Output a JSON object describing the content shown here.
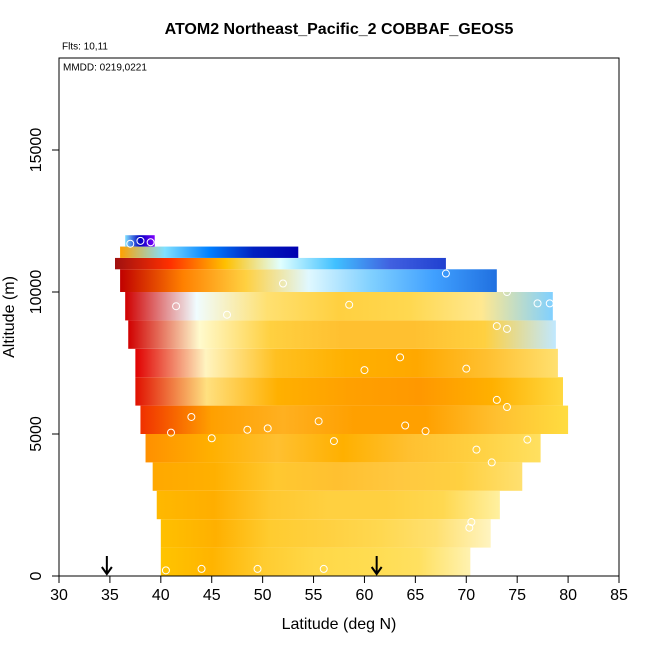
{
  "chart_data": {
    "type": "curtain",
    "title": "ATOM2 Northeast_Pacific_2 COBBAF_GEOS5",
    "note_top": "Flts: 10,11",
    "note_inner": "MMDD: 0219,0221",
    "xlabel": "Latitude (deg N)",
    "ylabel": "Altitude (m)",
    "xlim": [
      30,
      85
    ],
    "xticks": [
      30,
      35,
      40,
      45,
      50,
      55,
      60,
      65,
      70,
      75,
      80,
      85
    ],
    "ylim": [
      0,
      18240
    ],
    "yticks": [
      0,
      5000,
      10000,
      15000
    ],
    "rows": [
      {
        "alt": [
          0,
          1000
        ],
        "lat": [
          40,
          70.4
        ],
        "colors": [
          "#ffc400",
          "#ffb400",
          "#ffcc30",
          "#ffd848",
          "#ffdc50",
          "#ffe060",
          "#fff2b0"
        ]
      },
      {
        "alt": [
          1000,
          2000
        ],
        "lat": [
          40,
          72.4
        ],
        "colors": [
          "#ffc000",
          "#ffb000",
          "#ffcc30",
          "#ffd040",
          "#ffd850",
          "#ffe070",
          "#fff4c0"
        ]
      },
      {
        "alt": [
          2000,
          3000
        ],
        "lat": [
          39.6,
          73.3
        ],
        "colors": [
          "#ffb800",
          "#ffae00",
          "#ffc830",
          "#ffd040",
          "#ffd040",
          "#ffd850",
          "#fff0a0"
        ]
      },
      {
        "alt": [
          3000,
          4000
        ],
        "lat": [
          39.2,
          75.5
        ],
        "colors": [
          "#ffa800",
          "#ffb000",
          "#ffc830",
          "#ffc030",
          "#ffc840",
          "#ffd040",
          "#ffe070"
        ]
      },
      {
        "alt": [
          4000,
          5000
        ],
        "lat": [
          38.5,
          77.3
        ],
        "colors": [
          "#ff9000",
          "#ffb000",
          "#ffc030",
          "#ffb000",
          "#ffc030",
          "#ffd040",
          "#ffe060"
        ]
      },
      {
        "alt": [
          5000,
          6000
        ],
        "lat": [
          38,
          80
        ],
        "colors": [
          "#f03000",
          "#ffa000",
          "#ffb020",
          "#ffa000",
          "#ffa000",
          "#ffc030",
          "#ffdc40"
        ]
      },
      {
        "alt": [
          6000,
          7000
        ],
        "lat": [
          37.5,
          79.5
        ],
        "colors": [
          "#e01000",
          "#ffe080",
          "#ffb000",
          "#ffa000",
          "#ff9800",
          "#ffb000",
          "#ffd840"
        ]
      },
      {
        "alt": [
          7000,
          8000
        ],
        "lat": [
          37.5,
          79
        ],
        "colors": [
          "#e00000",
          "#fff4c0",
          "#ffc020",
          "#ffb000",
          "#ffa800",
          "#ffc030",
          "#ffe070"
        ]
      },
      {
        "alt": [
          8000,
          9000
        ],
        "lat": [
          36.8,
          78.8
        ],
        "colors": [
          "#d00000",
          "#fffacd",
          "#ffd040",
          "#ffc030",
          "#ffc030",
          "#ffd040",
          "#c0e8ff"
        ]
      },
      {
        "alt": [
          9000,
          10000
        ],
        "lat": [
          36.5,
          78.5
        ],
        "colors": [
          "#d00000",
          "#f0fcff",
          "#ffe070",
          "#ffd040",
          "#ffd850",
          "#ffe890",
          "#80d0ff"
        ]
      },
      {
        "alt": [
          10000,
          10800
        ],
        "lat": [
          36,
          73
        ],
        "colors": [
          "#c00000",
          "#ff8000",
          "#ffd040",
          "#e0f8ff",
          "#80d0ff",
          "#40a0ff",
          "#2070e0"
        ]
      },
      {
        "alt": [
          10800,
          11200
        ],
        "lat": [
          35.5,
          68
        ],
        "colors": [
          "#a01010",
          "#ff3000",
          "#ffc000",
          "#e0ffff",
          "#40c0ff",
          "#4060e0",
          "#2040d0"
        ]
      },
      {
        "alt": [
          11200,
          11600
        ],
        "lat": [
          36,
          53.5
        ],
        "colors": [
          "#ffa000",
          "#80e0ff",
          "#0080ff",
          "#0020c0",
          "#0000b0"
        ]
      },
      {
        "alt": [
          11600,
          12000
        ],
        "lat": [
          36.5,
          39.4
        ],
        "colors": [
          "#80e0ff",
          "#0000c0",
          "#8000ff"
        ]
      }
    ],
    "points_lat": [
      38,
      39,
      37,
      68,
      52,
      74,
      77,
      78.2,
      41.5,
      58.5,
      46.5,
      73,
      74,
      63.5,
      60,
      70,
      73,
      74,
      43,
      55.5,
      64,
      50.5,
      48.5,
      66,
      41,
      45,
      57,
      76,
      71,
      72.5,
      70.5,
      70.3,
      44,
      49.5,
      56,
      40.5
    ],
    "points_alt": [
      11800,
      11750,
      11700,
      10650,
      10300,
      10000,
      9600,
      9600,
      9500,
      9550,
      9200,
      8800,
      8700,
      7700,
      7250,
      7300,
      6200,
      5950,
      5600,
      5450,
      5300,
      5200,
      5150,
      5100,
      5050,
      4850,
      4750,
      4800,
      4450,
      4000,
      1900,
      1700,
      250,
      250,
      250,
      200
    ],
    "arrows_lat": [
      34.7,
      61.2
    ]
  }
}
